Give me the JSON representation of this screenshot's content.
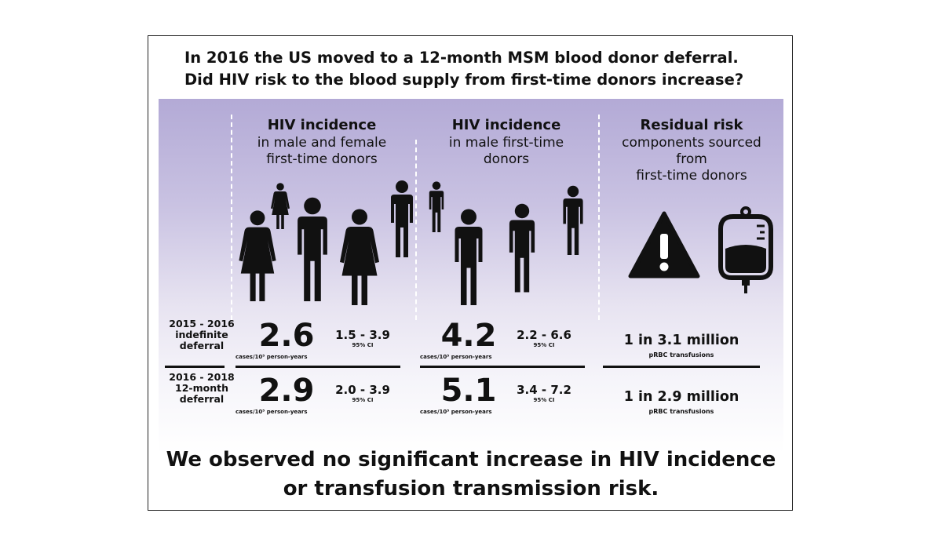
{
  "question": {
    "line1": "In 2016 the US moved to a 12-month MSM blood donor deferral.",
    "line2": "Did HIV risk to the blood supply from first-time donors increase?"
  },
  "columns": [
    {
      "heading": "HIV incidence",
      "sub1": "in male and female",
      "sub2": "first-time donors",
      "sub3": ""
    },
    {
      "heading": "HIV incidence",
      "sub1": "in male first-time",
      "sub2": "donors",
      "sub3": ""
    },
    {
      "heading": "Residual risk",
      "sub1": "components sourced",
      "sub2": "from",
      "sub3": "first-time donors"
    }
  ],
  "icons": {
    "col1": [
      "female-person-icon",
      "male-child-icon",
      "female-child-icon",
      "male-person-icon",
      "female-person-icon",
      "male-person-icon"
    ],
    "col2": [
      "male-child-icon",
      "male-person-icon",
      "male-person-icon",
      "male-person-icon"
    ],
    "col3": [
      "warning-triangle-icon",
      "blood-bag-icon"
    ]
  },
  "periods": [
    {
      "label1": "2015 - 2016",
      "label2": "indefinite",
      "label3": "deferral",
      "all_donors": {
        "value": "2.6",
        "unit": "cases/10⁵ person-years",
        "ci": "1.5 - 3.9",
        "ci_label": "95% CI"
      },
      "male_donors": {
        "value": "4.2",
        "unit": "cases/10⁵ person-years",
        "ci": "2.2 - 6.6",
        "ci_label": "95% CI"
      },
      "risk": {
        "value": "1 in 3.1 million",
        "label": "pRBC transfusions"
      }
    },
    {
      "label1": "2016 - 2018",
      "label2": "12-month",
      "label3": "deferral",
      "all_donors": {
        "value": "2.9",
        "unit": "cases/10⁵ person-years",
        "ci": "2.0 - 3.9",
        "ci_label": "95% CI"
      },
      "male_donors": {
        "value": "5.1",
        "unit": "cases/10⁵ person-years",
        "ci": "3.4 - 7.2",
        "ci_label": "95% CI"
      },
      "risk": {
        "value": "1 in 2.9 million",
        "label": "pRBC transfusions"
      }
    }
  ],
  "conclusion": {
    "line1": "We observed no significant increase in HIV incidence",
    "line2": "or transfusion transmission risk."
  },
  "colors": {
    "band_top": "#b3aad6",
    "text": "#111111",
    "icon": "#111111"
  }
}
